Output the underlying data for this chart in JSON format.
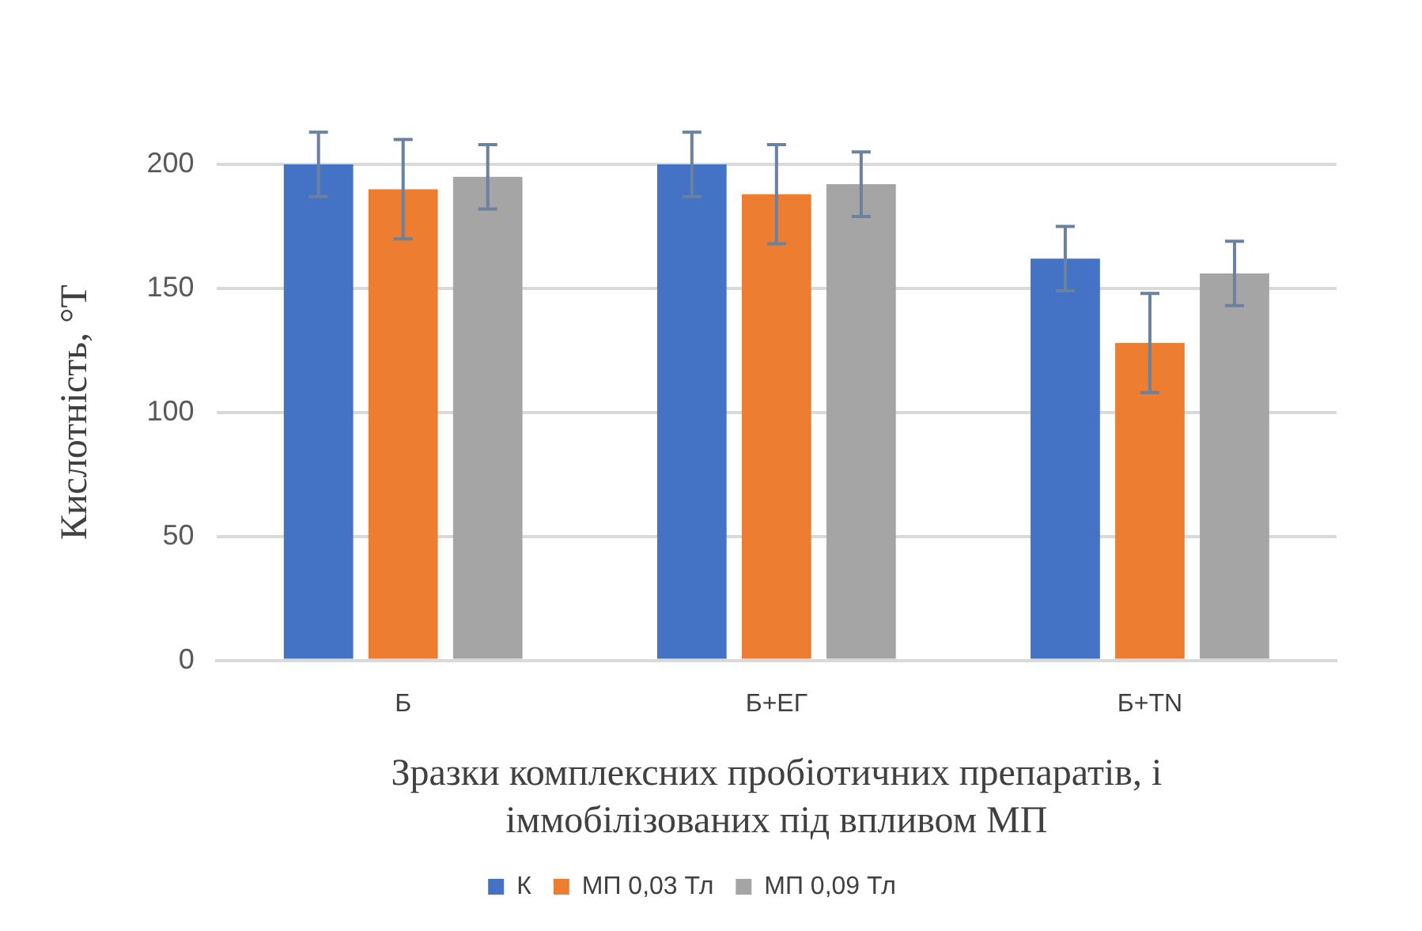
{
  "chart_data": {
    "type": "bar",
    "xlabel": "Зразки комплексних пробіотичних препаратів, і\nіммобілізованих під впливом МП",
    "ylabel": "Кислотність, °Т",
    "categories": [
      "Б",
      "Б+ЕГ",
      "Б+TN"
    ],
    "series": [
      {
        "name": "К",
        "color": "#4472c4",
        "values": [
          200,
          200,
          162
        ],
        "errors": [
          13,
          13,
          13
        ]
      },
      {
        "name": "МП 0,03 Тл",
        "color": "#ed7d31",
        "values": [
          190,
          188,
          128
        ],
        "errors": [
          20,
          20,
          20
        ]
      },
      {
        "name": "МП 0,09 Тл",
        "color": "#a5a5a5",
        "values": [
          195,
          192,
          156
        ],
        "errors": [
          13,
          13,
          13
        ]
      }
    ],
    "ylim": [
      0,
      200
    ],
    "yticks": [
      0,
      50,
      100,
      150,
      200
    ],
    "grid": "y",
    "legend": "bottom"
  }
}
